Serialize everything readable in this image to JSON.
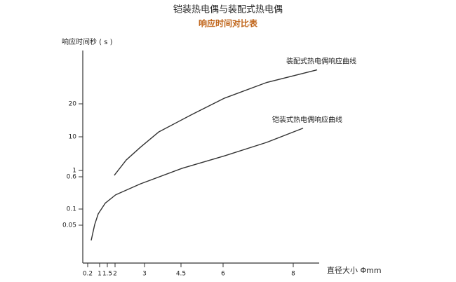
{
  "chart_data": {
    "type": "line",
    "title": "铠装热电偶与装配式热电偶",
    "subtitle": "响应时间对比表",
    "y_label": "响应时间秒 ( s )",
    "x_label": "直径大小 Φmm",
    "xlim": [
      0,
      8.7
    ],
    "xticks": [
      0.2,
      1,
      1.5,
      2,
      3,
      4.5,
      6,
      8
    ],
    "ylim": [
      0,
      36
    ],
    "yticks": [
      0.05,
      0.1,
      0.6,
      1,
      10,
      20
    ],
    "series": [
      {
        "name": "装配式热电偶响应曲线",
        "color": "#333333",
        "x": [
          1.95,
          2.38,
          2.86,
          3.59,
          4.9,
          6.04,
          7.24,
          8.68
        ],
        "values": [
          0.69,
          3.8,
          7.2,
          11.5,
          16.8,
          21.7,
          26.4,
          30.2
        ]
      },
      {
        "name": "铠装式热电偶响应曲线",
        "color": "#333333",
        "x": [
          0.435,
          0.67,
          0.906,
          1.36,
          2.02,
          2.86,
          4.55,
          6.04,
          7.24,
          8.28
        ],
        "values": [
          0.03,
          0.052,
          0.085,
          0.19,
          0.32,
          0.49,
          1.6,
          4.9,
          8.5,
          12.6
        ]
      }
    ]
  }
}
